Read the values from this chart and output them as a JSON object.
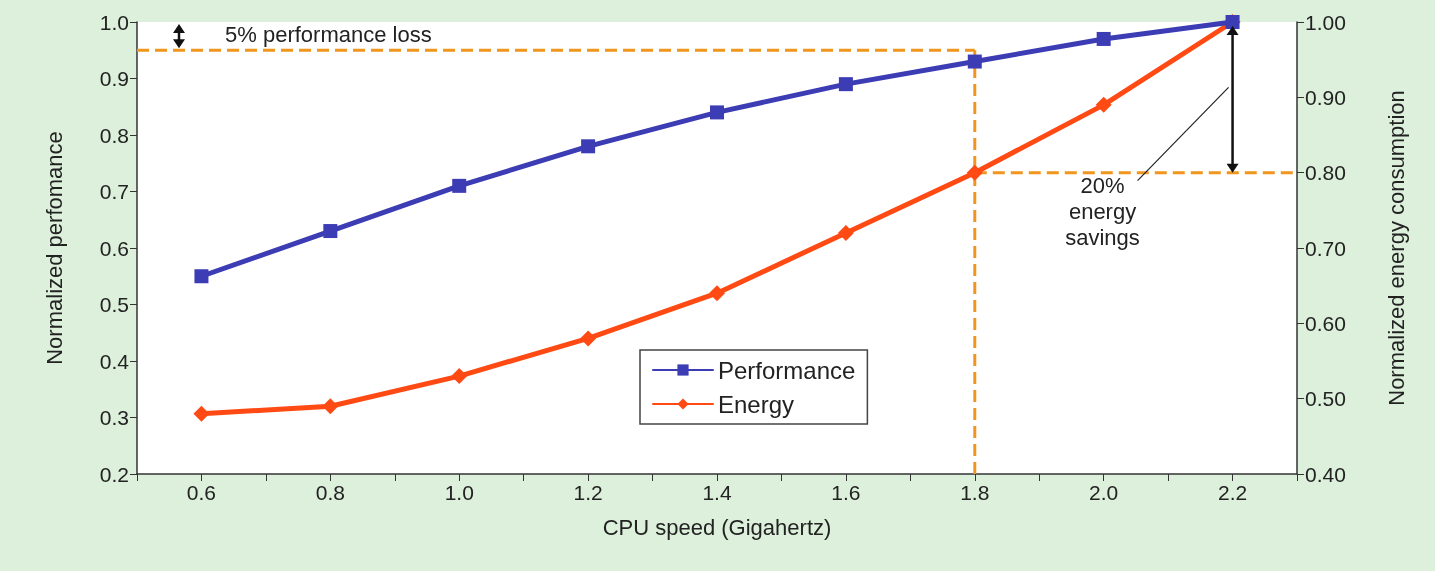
{
  "chart_data": {
    "type": "line",
    "xlabel": "CPU speed (Gigahertz)",
    "ylabel": "Normalized perfomance",
    "y2label": "Normalized energy consumption",
    "x": [
      0.6,
      0.8,
      1.0,
      1.2,
      1.4,
      1.6,
      1.8,
      2.0,
      2.2
    ],
    "series": [
      {
        "name": "Performance",
        "color": "#3c3cb4",
        "marker": "square",
        "values": [
          0.55,
          0.63,
          0.71,
          0.78,
          0.84,
          0.89,
          0.93,
          0.97,
          1.0
        ]
      },
      {
        "name": "Energy",
        "color": "#ff4a14",
        "marker": "diamond",
        "axis": "y2",
        "values": [
          0.48,
          0.49,
          0.53,
          0.58,
          0.64,
          0.72,
          0.8,
          0.89,
          1.0
        ]
      }
    ],
    "xlim": [
      0.5,
      2.3
    ],
    "xticks": [
      {
        "value": 0.5,
        "label": null
      },
      {
        "value": 0.6,
        "label": "0.6"
      },
      {
        "value": 0.7,
        "label": null
      },
      {
        "value": 0.8,
        "label": "0.8"
      },
      {
        "value": 0.9,
        "label": null
      },
      {
        "value": 1.0,
        "label": "1.0"
      },
      {
        "value": 1.1,
        "label": null
      },
      {
        "value": 1.2,
        "label": "1.2"
      },
      {
        "value": 1.3,
        "label": null
      },
      {
        "value": 1.4,
        "label": "1.4"
      },
      {
        "value": 1.5,
        "label": null
      },
      {
        "value": 1.6,
        "label": "1.6"
      },
      {
        "value": 1.7,
        "label": null
      },
      {
        "value": 1.8,
        "label": "1.8"
      },
      {
        "value": 1.9,
        "label": null
      },
      {
        "value": 2.0,
        "label": "2.0"
      },
      {
        "value": 2.1,
        "label": null
      },
      {
        "value": 2.2,
        "label": "2.2"
      },
      {
        "value": 2.3,
        "label": null
      }
    ],
    "ylim": [
      0.2,
      1.0
    ],
    "yticks": [
      {
        "value": 0.2,
        "label": "0.2"
      },
      {
        "value": 0.3,
        "label": "0.3"
      },
      {
        "value": 0.4,
        "label": "0.4"
      },
      {
        "value": 0.5,
        "label": "0.5"
      },
      {
        "value": 0.6,
        "label": "0.6"
      },
      {
        "value": 0.7,
        "label": "0.7"
      },
      {
        "value": 0.8,
        "label": "0.8"
      },
      {
        "value": 0.9,
        "label": "0.9"
      },
      {
        "value": 1.0,
        "label": "1.0"
      }
    ],
    "y2lim": [
      0.4,
      1.0
    ],
    "y2ticks": [
      {
        "value": 0.4,
        "label": "0.40"
      },
      {
        "value": 0.5,
        "label": "0.50"
      },
      {
        "value": 0.6,
        "label": "0.60"
      },
      {
        "value": 0.7,
        "label": "0.70"
      },
      {
        "value": 0.8,
        "label": "0.80"
      },
      {
        "value": 0.9,
        "label": "0.90"
      },
      {
        "value": 1.0,
        "label": "1.00"
      }
    ],
    "ref_lines": [
      {
        "axis": "y",
        "value": 0.95,
        "label": "5% performance loss",
        "color": "#f0961e",
        "line_style": "dashed"
      },
      {
        "axis": "x",
        "value": 1.8,
        "color": "#f0961e",
        "line_style": "dashed"
      },
      {
        "axis": "y2",
        "value": 0.8,
        "color": "#f0961e",
        "line_style": "dashed"
      }
    ],
    "annotations": [
      "20%\nenergy\nsavings"
    ],
    "grid": false,
    "legend": "bottom",
    "line_style": "solid"
  }
}
